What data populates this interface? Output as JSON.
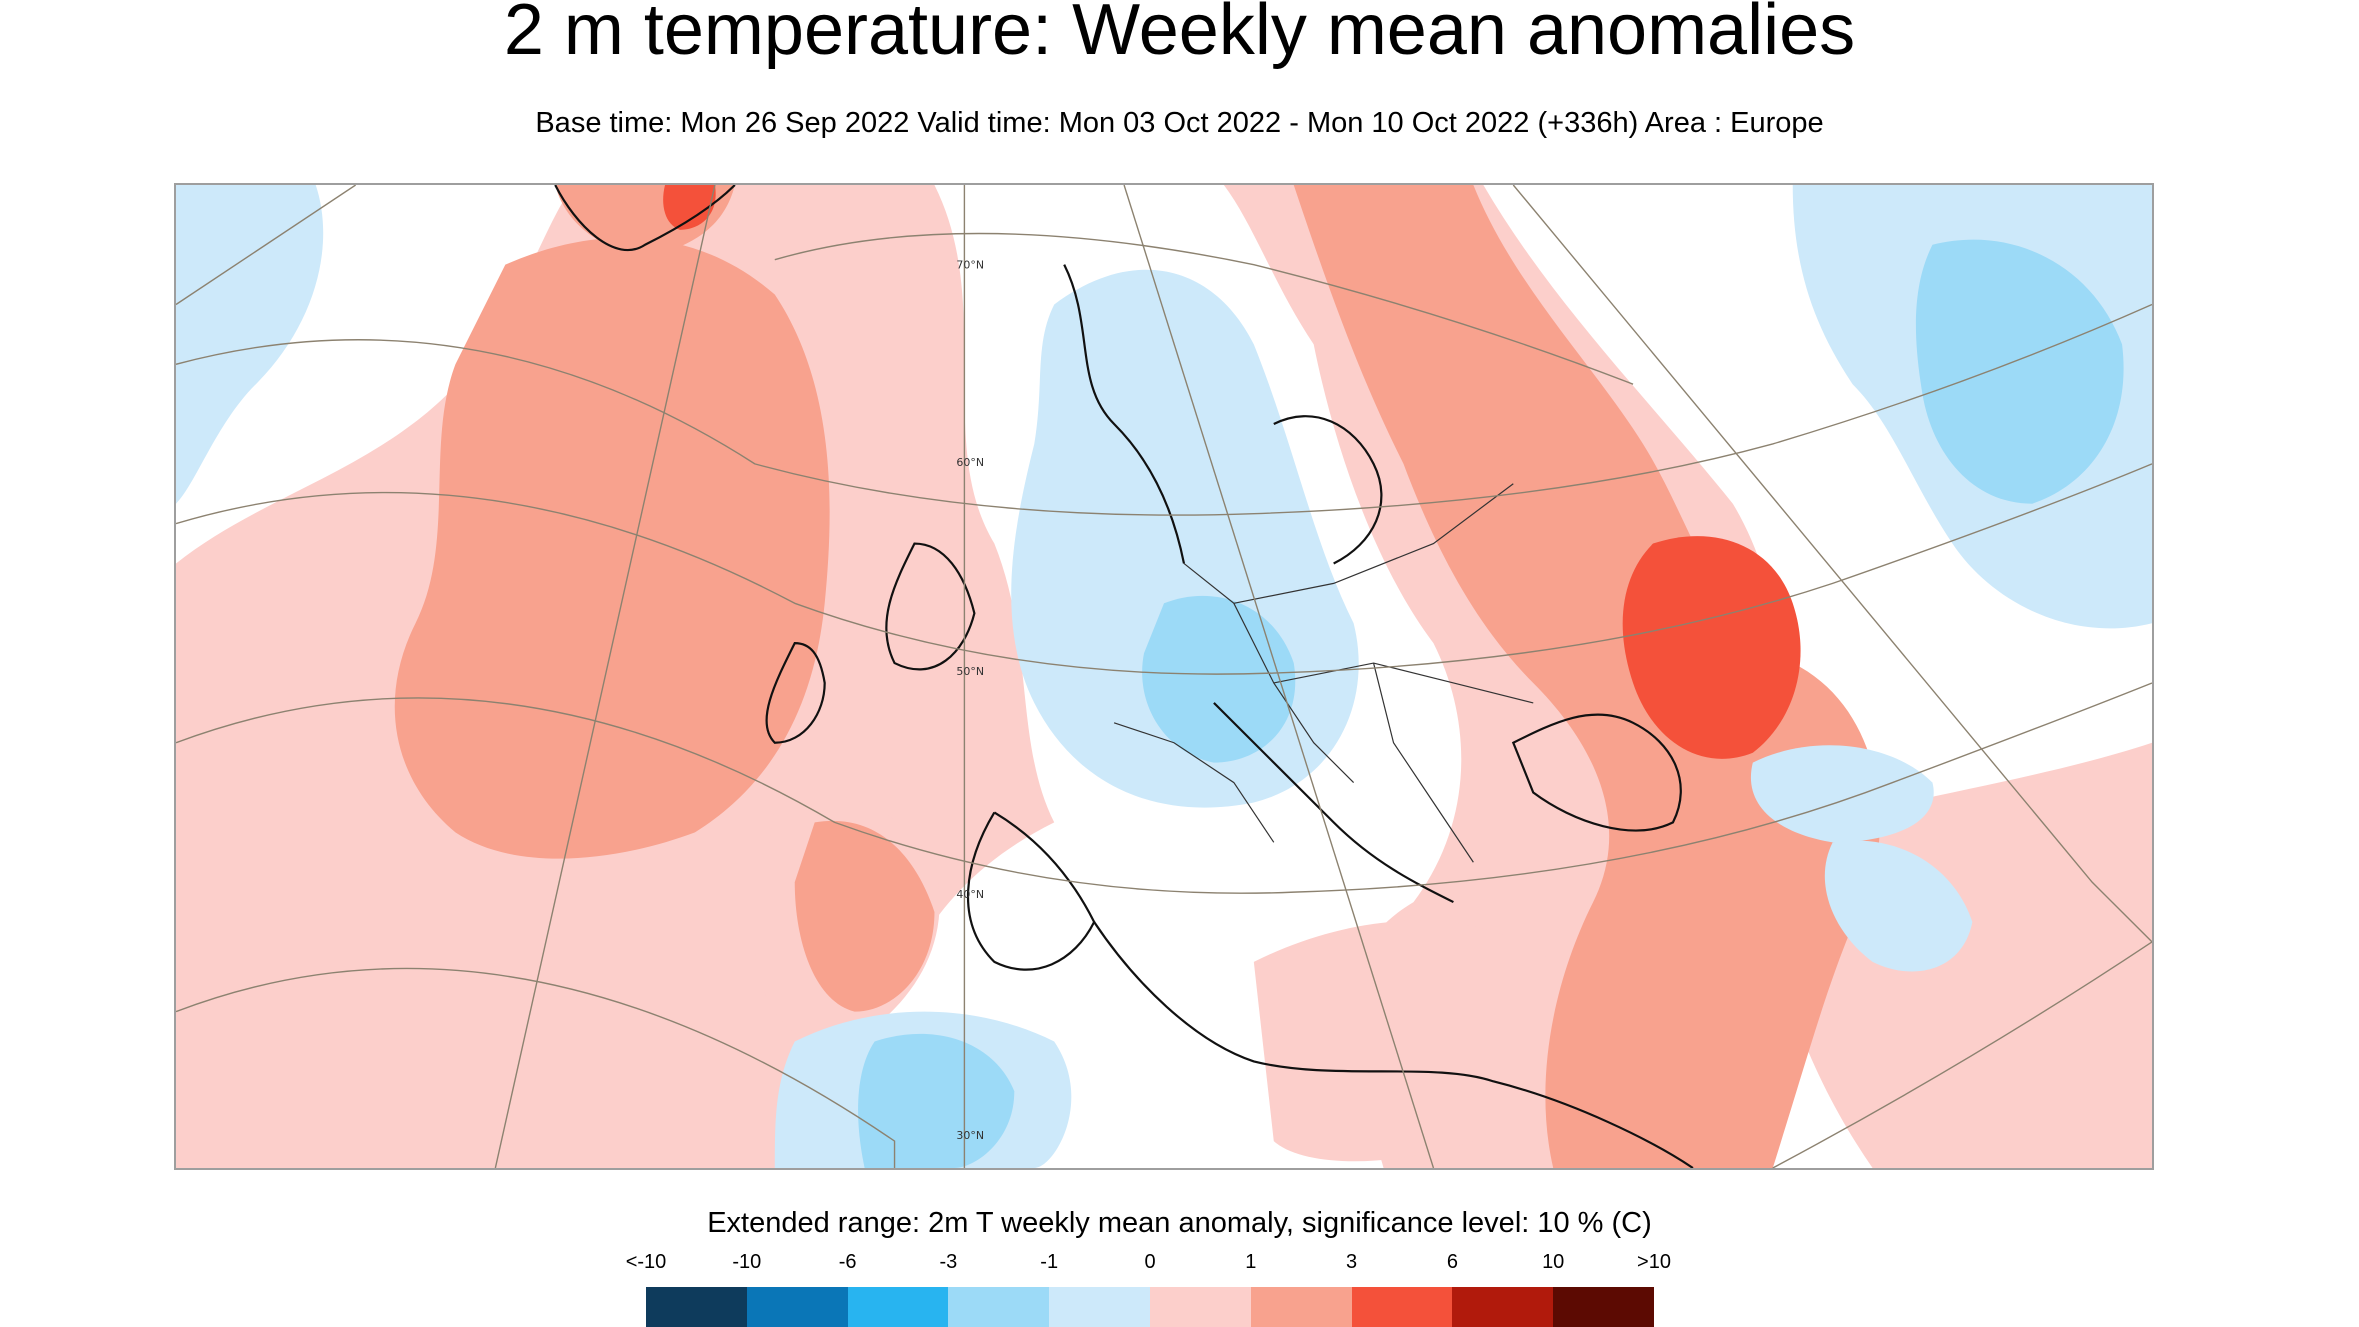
{
  "header": {
    "title": "2 m temperature: Weekly mean anomalies",
    "subtitle": "Base time: Mon 26 Sep 2022 Valid time: Mon 03 Oct 2022 - Mon 10 Oct 2022 (+336h) Area : Europe"
  },
  "map": {
    "region": "Europe",
    "latitude_labels": [
      "70°N",
      "60°N",
      "50°N",
      "40°N",
      "30°N"
    ]
  },
  "legend": {
    "title": "Extended range: 2m T weekly mean anomaly, significance level: 10 % (C)",
    "ticks": [
      "<-10",
      "-10",
      "-6",
      "-3",
      "-1",
      "0",
      "1",
      "3",
      "6",
      "10",
      ">10"
    ],
    "colors": [
      "#0e3b5c",
      "#0a76b7",
      "#28b4f0",
      "#9cdaf7",
      "#cde9fa",
      "#fccfcb",
      "#f8a28e",
      "#f4513a",
      "#b11a0c",
      "#5c0a02"
    ]
  }
}
